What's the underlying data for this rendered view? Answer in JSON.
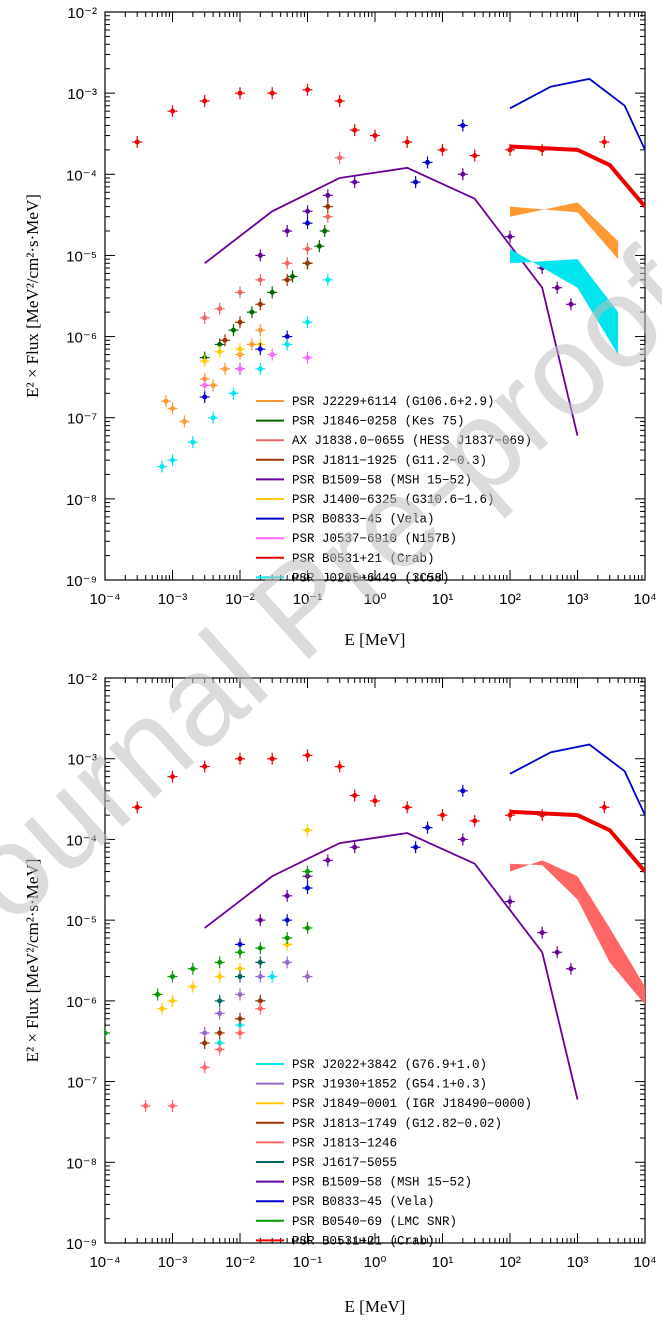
{
  "chart_data": [
    {
      "type": "scatter",
      "xlabel": "E [MeV]",
      "ylabel": "E² × Flux [MeV²/cm²·s·MeV]",
      "xscale": "log",
      "yscale": "log",
      "xlim": [
        0.0001,
        10000
      ],
      "ylim": [
        1e-09,
        0.01
      ],
      "x_ticks": [
        "10⁻⁴",
        "10⁻³",
        "10⁻²",
        "10⁻¹",
        "10⁰",
        "10¹",
        "10²",
        "10³",
        "10⁴"
      ],
      "y_ticks": [
        "10⁻²",
        "10⁻³",
        "10⁻⁴",
        "10⁻⁵",
        "10⁻⁶",
        "10⁻⁷",
        "10⁻⁸",
        "10⁻⁹"
      ],
      "legend_position": "bottom-right",
      "series": [
        {
          "name": "PSR J2229+6114 (G106.6+2.9)",
          "color": "#ff9933",
          "points": [
            [
              0.0008,
              1.6e-07
            ],
            [
              0.001,
              1.3e-07
            ],
            [
              0.0015,
              9e-08
            ],
            [
              0.003,
              3e-07
            ],
            [
              0.004,
              2.5e-07
            ],
            [
              0.006,
              4e-07
            ],
            [
              0.01,
              6e-07
            ],
            [
              0.015,
              8e-07
            ],
            [
              0.02,
              1.2e-06
            ]
          ],
          "band": [
            [
              100,
              3e-05,
              4e-05
            ],
            [
              1000,
              4.5e-05,
              3.4e-05
            ],
            [
              4000,
              1.5e-05,
              9e-06
            ]
          ]
        },
        {
          "name": "PSR J1846−0258 (Kes 75)",
          "color": "#006600",
          "points": [
            [
              0.003,
              5.5e-07
            ],
            [
              0.005,
              8e-07
            ],
            [
              0.008,
              1.2e-06
            ],
            [
              0.015,
              2e-06
            ],
            [
              0.03,
              3.5e-06
            ],
            [
              0.06,
              5.5e-06
            ],
            [
              0.1,
              8e-06
            ],
            [
              0.15,
              1.3e-05
            ],
            [
              0.18,
              2e-05
            ]
          ]
        },
        {
          "name": "AX J1838.0−0655 (HESS J1837−069)",
          "color": "#ee6666",
          "points": [
            [
              0.003,
              1.7e-06
            ],
            [
              0.005,
              2.2e-06
            ],
            [
              0.01,
              3.5e-06
            ],
            [
              0.02,
              5e-06
            ],
            [
              0.05,
              8e-06
            ],
            [
              0.1,
              1.2e-05
            ],
            [
              0.2,
              3e-05
            ],
            [
              0.3,
              0.00016
            ]
          ]
        },
        {
          "name": "PSR J1811−1925 (G11.2−0.3)",
          "color": "#993300",
          "points": [
            [
              0.006,
              9e-07
            ],
            [
              0.01,
              1.5e-06
            ],
            [
              0.02,
              2.5e-06
            ],
            [
              0.05,
              5e-06
            ],
            [
              0.1,
              8e-06
            ],
            [
              0.2,
              4e-05
            ]
          ]
        },
        {
          "name": "PSR B1509−58 (MSH 15−52)",
          "color": "#660099",
          "points": [
            [
              0.02,
              1e-05
            ],
            [
              0.05,
              2e-05
            ],
            [
              0.1,
              3.5e-05
            ],
            [
              0.2,
              5.5e-05
            ],
            [
              0.5,
              8e-05
            ],
            [
              20,
              0.0001
            ],
            [
              100,
              1.7e-05
            ],
            [
              300,
              7e-06
            ],
            [
              500,
              4e-06
            ],
            [
              800,
              2.5e-06
            ]
          ],
          "curve": [
            [
              0.003,
              8e-06
            ],
            [
              0.03,
              3.5e-05
            ],
            [
              0.3,
              9e-05
            ],
            [
              3,
              0.00012
            ],
            [
              30,
              5e-05
            ],
            [
              300,
              4e-06
            ],
            [
              1000,
              6e-08
            ]
          ]
        },
        {
          "name": "PSR J1400−6325 (G310.6−1.6)",
          "color": "#ffcc00",
          "points": [
            [
              0.003,
              5e-07
            ],
            [
              0.005,
              6.5e-07
            ],
            [
              0.01,
              7e-07
            ],
            [
              0.02,
              8e-07
            ]
          ]
        },
        {
          "name": "PSR B0833−45 (Vela)",
          "color": "#0000cc",
          "points": [
            [
              0.003,
              1.8e-07
            ],
            [
              0.01,
              4e-07
            ],
            [
              0.02,
              7e-07
            ],
            [
              0.05,
              1e-06
            ],
            [
              0.1,
              2.5e-05
            ],
            [
              4,
              8e-05
            ],
            [
              6,
              0.00014
            ],
            [
              20,
              0.0004
            ]
          ],
          "curve": [
            [
              100,
              0.00065
            ],
            [
              400,
              0.0012
            ],
            [
              1500,
              0.0015
            ],
            [
              5000,
              0.0007
            ],
            [
              10000,
              0.0002
            ]
          ]
        },
        {
          "name": "PSR J0537−6910 (N157B)",
          "color": "#ff66ff",
          "points": [
            [
              0.003,
              2.5e-07
            ],
            [
              0.01,
              4e-07
            ],
            [
              0.03,
              6e-07
            ],
            [
              0.1,
              5.5e-07
            ]
          ]
        },
        {
          "name": "PSR B0531+21 (Crab)",
          "color": "#ee0000",
          "points": [
            [
              0.0003,
              0.00025
            ],
            [
              0.001,
              0.0006
            ],
            [
              0.003,
              0.0008
            ],
            [
              0.01,
              0.001
            ],
            [
              0.03,
              0.001
            ],
            [
              0.1,
              0.0011
            ],
            [
              0.3,
              0.0008
            ],
            [
              0.5,
              0.00035
            ],
            [
              1,
              0.0003
            ],
            [
              3,
              0.00025
            ],
            [
              10,
              0.0002
            ],
            [
              30,
              0.00017
            ],
            [
              100,
              0.0002
            ],
            [
              300,
              0.0002
            ],
            [
              2500,
              0.00025
            ]
          ],
          "curve": [
            [
              100,
              0.00022
            ],
            [
              1000,
              0.0002
            ],
            [
              3000,
              0.00013
            ],
            [
              10000,
              4e-05
            ]
          ]
        },
        {
          "name": "PSR J0205+6449 (3C58)",
          "color": "#00e5ee",
          "points": [
            [
              0.0007,
              2.5e-08
            ],
            [
              0.001,
              3e-08
            ],
            [
              0.002,
              5e-08
            ],
            [
              0.004,
              1e-07
            ],
            [
              0.008,
              2e-07
            ],
            [
              0.02,
              4e-07
            ],
            [
              0.05,
              8e-07
            ],
            [
              0.1,
              1.5e-06
            ],
            [
              0.2,
              5e-06
            ]
          ],
          "band": [
            [
              100,
              8e-06,
              1.2e-05
            ],
            [
              1000,
              9e-06,
              4e-06
            ],
            [
              4000,
              2e-06,
              6e-07
            ]
          ]
        }
      ]
    },
    {
      "type": "scatter",
      "xlabel": "E [MeV]",
      "ylabel": "E² × Flux [MeV²/cm²·s·MeV]",
      "xscale": "log",
      "yscale": "log",
      "xlim": [
        0.0001,
        10000
      ],
      "ylim": [
        1e-09,
        0.01
      ],
      "x_ticks": [
        "10⁻⁴",
        "10⁻³",
        "10⁻²",
        "10⁻¹",
        "10⁰",
        "10¹",
        "10²",
        "10³",
        "10⁴"
      ],
      "y_ticks": [
        "10⁻²",
        "10⁻³",
        "10⁻⁴",
        "10⁻⁵",
        "10⁻⁶",
        "10⁻⁷",
        "10⁻⁸",
        "10⁻⁹"
      ],
      "legend_position": "bottom-right",
      "series": [
        {
          "name": "PSR J2022+3842 (G76.9+1.0)",
          "color": "#00e5ee",
          "points": [
            [
              0.005,
              3e-07
            ],
            [
              0.01,
              5e-07
            ],
            [
              0.02,
              1e-06
            ],
            [
              0.03,
              2e-06
            ]
          ]
        },
        {
          "name": "PSR J1930+1852 (G54.1+0.3)",
          "color": "#9966cc",
          "points": [
            [
              0.003,
              4e-07
            ],
            [
              0.005,
              7e-07
            ],
            [
              0.01,
              1.2e-06
            ],
            [
              0.02,
              2e-06
            ],
            [
              0.05,
              3e-06
            ],
            [
              0.1,
              2e-06
            ]
          ]
        },
        {
          "name": "PSR J1849−0001 (IGR J18490−0000)",
          "color": "#ffcc00",
          "points": [
            [
              0.0007,
              8e-07
            ],
            [
              0.001,
              1e-06
            ],
            [
              0.002,
              1.5e-06
            ],
            [
              0.005,
              2e-06
            ],
            [
              0.01,
              2.5e-06
            ],
            [
              0.02,
              3e-06
            ],
            [
              0.05,
              5e-06
            ],
            [
              0.1,
              0.00013
            ]
          ]
        },
        {
          "name": "PSR J1813−1749 (G12.82−0.02)",
          "color": "#993300",
          "points": [
            [
              0.003,
              3e-07
            ],
            [
              0.005,
              4e-07
            ],
            [
              0.01,
              6e-07
            ],
            [
              0.02,
              1e-06
            ]
          ]
        },
        {
          "name": "PSR J1813−1246",
          "color": "#ff6666",
          "points": [
            [
              0.0004,
              5e-08
            ],
            [
              0.001,
              5e-08
            ],
            [
              0.003,
              1.5e-07
            ],
            [
              0.005,
              2.5e-07
            ],
            [
              0.01,
              4e-07
            ],
            [
              0.02,
              8e-07
            ]
          ],
          "band": [
            [
              100,
              4e-05,
              5e-05
            ],
            [
              300,
              5.5e-05,
              4.8e-05
            ],
            [
              1000,
              3.5e-05,
              1.8e-05
            ],
            [
              3000,
              8e-06,
              3e-06
            ],
            [
              10000,
              1.5e-06,
              9e-07
            ]
          ]
        },
        {
          "name": "PSR J1617−5055",
          "color": "#006666",
          "points": [
            [
              0.005,
              1e-06
            ],
            [
              0.01,
              2e-06
            ],
            [
              0.02,
              3e-06
            ]
          ]
        },
        {
          "name": "PSR B1509−58 (MSH 15−52)",
          "color": "#660099",
          "points": [
            [
              0.02,
              1e-05
            ],
            [
              0.05,
              2e-05
            ],
            [
              0.1,
              3.5e-05
            ],
            [
              0.2,
              5.5e-05
            ],
            [
              0.5,
              8e-05
            ],
            [
              20,
              0.0001
            ],
            [
              100,
              1.7e-05
            ],
            [
              300,
              7e-06
            ],
            [
              500,
              4e-06
            ],
            [
              800,
              2.5e-06
            ]
          ],
          "curve": [
            [
              0.003,
              8e-06
            ],
            [
              0.03,
              3.5e-05
            ],
            [
              0.3,
              9e-05
            ],
            [
              3,
              0.00012
            ],
            [
              30,
              5e-05
            ],
            [
              300,
              4e-06
            ],
            [
              1000,
              6e-08
            ]
          ]
        },
        {
          "name": "PSR B0833−45 (Vela)",
          "color": "#0000cc",
          "points": [
            [
              0.01,
              5e-06
            ],
            [
              0.05,
              1e-05
            ],
            [
              0.1,
              2.5e-05
            ],
            [
              4,
              8e-05
            ],
            [
              6,
              0.00014
            ],
            [
              20,
              0.0004
            ]
          ],
          "curve": [
            [
              100,
              0.00065
            ],
            [
              400,
              0.0012
            ],
            [
              1500,
              0.0015
            ],
            [
              5000,
              0.0007
            ],
            [
              10000,
              0.0002
            ]
          ]
        },
        {
          "name": "PSR B0540−69 (LMC SNR)",
          "color": "#009900",
          "points": [
            [
              0.0001,
              4e-07
            ],
            [
              0.0006,
              1.2e-06
            ],
            [
              0.001,
              2e-06
            ],
            [
              0.002,
              2.5e-06
            ],
            [
              0.005,
              3e-06
            ],
            [
              0.01,
              4e-06
            ],
            [
              0.02,
              4.5e-06
            ],
            [
              0.05,
              6e-06
            ],
            [
              0.1,
              8e-06
            ],
            [
              0.1,
              4e-05
            ]
          ]
        },
        {
          "name": "PSR B0531+21 (Crab)",
          "color": "#ee0000",
          "points": [
            [
              0.0003,
              0.00025
            ],
            [
              0.001,
              0.0006
            ],
            [
              0.003,
              0.0008
            ],
            [
              0.01,
              0.001
            ],
            [
              0.03,
              0.001
            ],
            [
              0.1,
              0.0011
            ],
            [
              0.3,
              0.0008
            ],
            [
              0.5,
              0.00035
            ],
            [
              1,
              0.0003
            ],
            [
              3,
              0.00025
            ],
            [
              10,
              0.0002
            ],
            [
              30,
              0.00017
            ],
            [
              100,
              0.0002
            ],
            [
              300,
              0.0002
            ],
            [
              2500,
              0.00025
            ]
          ],
          "curve": [
            [
              100,
              0.00022
            ],
            [
              1000,
              0.0002
            ],
            [
              3000,
              0.00013
            ],
            [
              10000,
              4e-05
            ]
          ]
        }
      ]
    }
  ],
  "watermark": "Journal Pre-proof"
}
